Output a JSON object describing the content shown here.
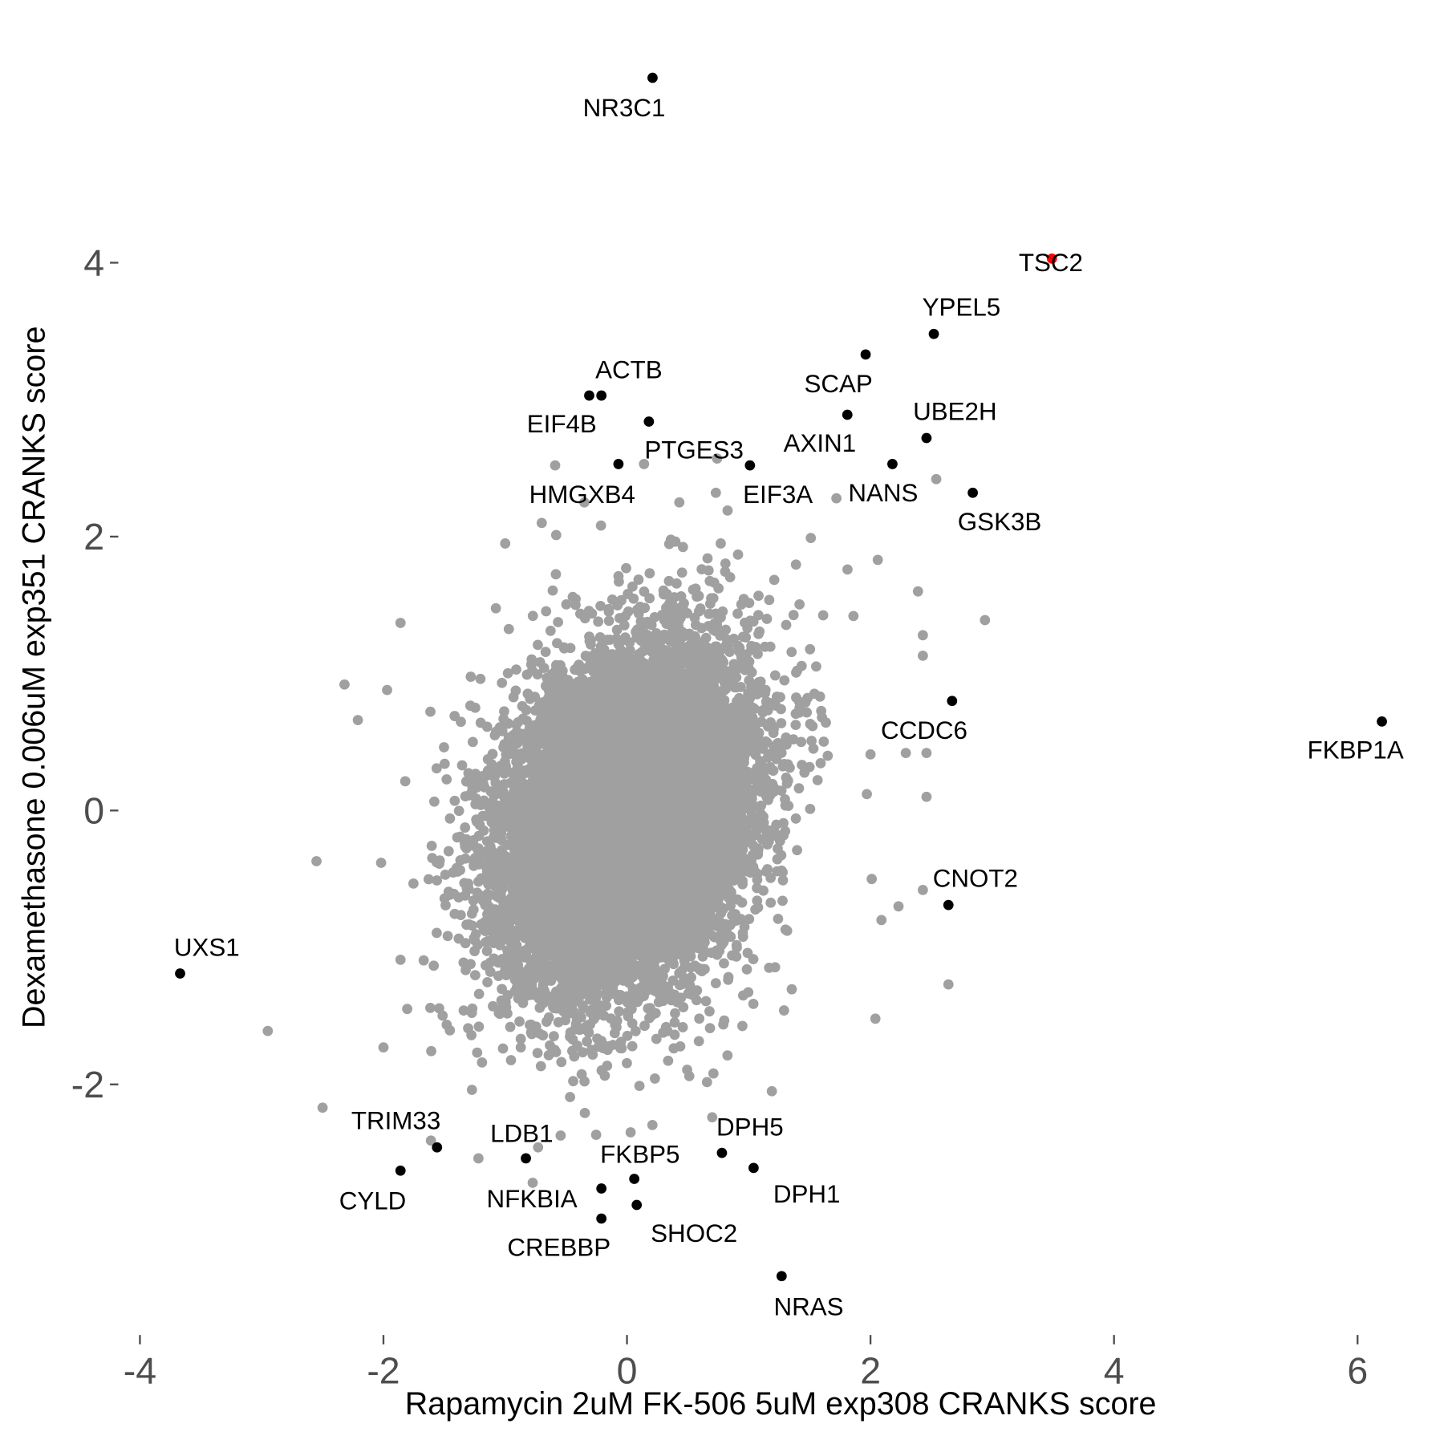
{
  "chart_data": {
    "type": "scatter",
    "title": "",
    "xlabel": "Rapamycin 2uM FK-506 5uM exp308 CRANKS score",
    "ylabel": "Dexamethasone 0.006uM exp351 CRANKS score",
    "xlim": [
      -4.15,
      6.5
    ],
    "ylim": [
      -3.6,
      5.6
    ],
    "xticks": [
      -4,
      -2,
      0,
      2,
      4,
      6
    ],
    "yticks": [
      -2,
      0,
      2,
      4
    ],
    "xtick_labels": [
      "-4",
      "-2",
      "0",
      "2",
      "4",
      "6"
    ],
    "ytick_labels": [
      "-2",
      "0",
      "2",
      "4"
    ],
    "grid": false,
    "colors": {
      "background": "#A0A0A0",
      "labeled": "#000000",
      "highlight": "#FF0000"
    },
    "labeled_points": [
      {
        "label": "NR3C1",
        "x": 0.21,
        "y": 5.35
      },
      {
        "label": "TSC2",
        "x": 3.49,
        "y": 4.03,
        "highlight": true
      },
      {
        "label": "YPEL5",
        "x": 2.52,
        "y": 3.48
      },
      {
        "label": "SCAP",
        "x": 1.96,
        "y": 3.33
      },
      {
        "label": "ACTB",
        "x": -0.21,
        "y": 3.03
      },
      {
        "label": "EIF4B",
        "x": -0.31,
        "y": 3.03
      },
      {
        "label": "PTGES3",
        "x": 0.18,
        "y": 2.84
      },
      {
        "label": "AXIN1",
        "x": 1.81,
        "y": 2.89
      },
      {
        "label": "UBE2H",
        "x": 2.46,
        "y": 2.72
      },
      {
        "label": "HMGXB4",
        "x": -0.07,
        "y": 2.53
      },
      {
        "label": "EIF3A",
        "x": 1.01,
        "y": 2.52
      },
      {
        "label": "NANS",
        "x": 2.18,
        "y": 2.53
      },
      {
        "label": "GSK3B",
        "x": 2.84,
        "y": 2.32
      },
      {
        "label": "CCDC6",
        "x": 2.67,
        "y": 0.8
      },
      {
        "label": "FKBP1A",
        "x": 6.2,
        "y": 0.65
      },
      {
        "label": "CNOT2",
        "x": 2.64,
        "y": -0.69
      },
      {
        "label": "UXS1",
        "x": -3.67,
        "y": -1.19
      },
      {
        "label": "TRIM33",
        "x": -1.56,
        "y": -2.46
      },
      {
        "label": "CYLD",
        "x": -1.86,
        "y": -2.63
      },
      {
        "label": "LDB1",
        "x": -0.83,
        "y": -2.54
      },
      {
        "label": "DPH5",
        "x": 0.78,
        "y": -2.5
      },
      {
        "label": "DPH1",
        "x": 1.04,
        "y": -2.61
      },
      {
        "label": "FKBP5",
        "x": 0.06,
        "y": -2.69
      },
      {
        "label": "NFKBIA",
        "x": -0.21,
        "y": -2.76
      },
      {
        "label": "SHOC2",
        "x": 0.08,
        "y": -2.88
      },
      {
        "label": "CREBBP",
        "x": -0.21,
        "y": -2.98
      },
      {
        "label": "NRAS",
        "x": 1.27,
        "y": -3.4
      }
    ],
    "background_outliers": [
      [
        -2.95,
        -1.61
      ],
      [
        -2.5,
        -2.17
      ],
      [
        -2.55,
        -0.37
      ],
      [
        -2.32,
        0.92
      ],
      [
        2.94,
        1.39
      ],
      [
        2.39,
        1.6
      ],
      [
        2.06,
        1.83
      ],
      [
        2.43,
        1.28
      ],
      [
        2.43,
        1.13
      ],
      [
        2.54,
        2.42
      ],
      [
        1.72,
        2.28
      ],
      [
        -0.59,
        2.52
      ],
      [
        -1.0,
        1.95
      ],
      [
        0.74,
        2.57
      ],
      [
        0.14,
        2.53
      ],
      [
        2.43,
        -0.58
      ],
      [
        2.64,
        -1.27
      ],
      [
        2.04,
        -1.52
      ],
      [
        2.46,
        0.1
      ],
      [
        2.46,
        0.42
      ],
      [
        2.29,
        0.42
      ],
      [
        2.0,
        0.41
      ],
      [
        -2.21,
        0.66
      ],
      [
        -1.97,
        0.88
      ],
      [
        -1.86,
        -1.09
      ],
      [
        -2.0,
        -1.73
      ],
      [
        1.19,
        -2.05
      ],
      [
        0.71,
        -1.92
      ],
      [
        0.7,
        -2.24
      ],
      [
        0.03,
        -2.35
      ],
      [
        -1.22,
        -2.54
      ],
      [
        -0.73,
        -2.46
      ],
      [
        -1.61,
        -2.41
      ],
      [
        1.29,
        -1.46
      ],
      [
        2.09,
        -0.8
      ],
      [
        2.23,
        -0.7
      ],
      [
        2.01,
        -0.5
      ],
      [
        1.97,
        0.12
      ],
      [
        1.86,
        1.42
      ],
      [
        1.51,
        1.99
      ],
      [
        0.77,
        1.95
      ],
      [
        -0.7,
        2.1
      ],
      [
        -1.86,
        1.37
      ],
      [
        0.73,
        2.32
      ],
      [
        0.43,
        2.25
      ],
      [
        -0.35,
        2.25
      ]
    ],
    "background_cloud": {
      "count": 12000,
      "mean": [
        0.0,
        -0.05
      ],
      "sd": [
        0.5,
        0.6
      ],
      "corr": 0.25
    }
  }
}
